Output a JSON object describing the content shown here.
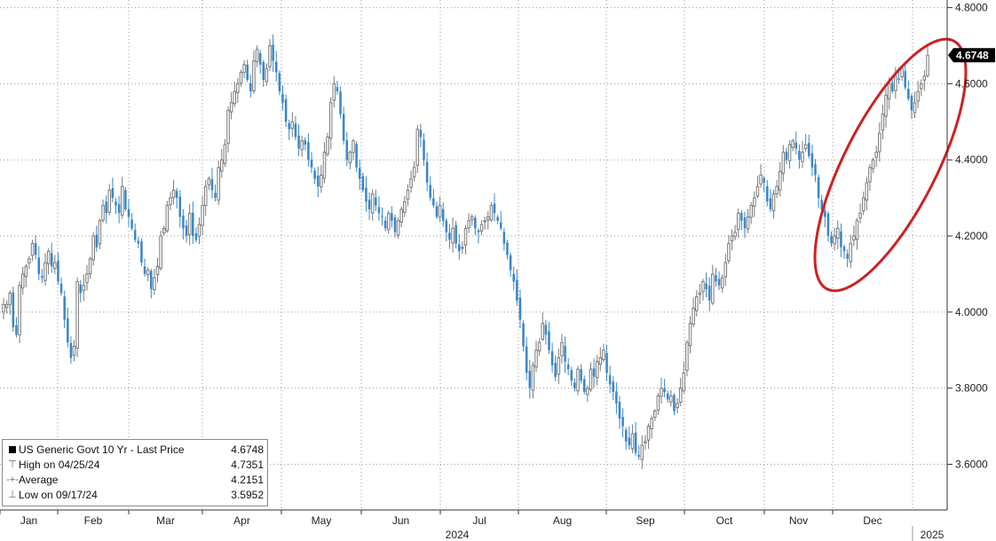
{
  "chart_data": {
    "type": "candlestick",
    "title": "",
    "series_name": "US Generic Govt 10 Yr - Last Price",
    "x_axis": {
      "months": [
        "Jan",
        "Feb",
        "Mar",
        "Apr",
        "May",
        "Jun",
        "Jul",
        "Aug",
        "Sep",
        "Oct",
        "Nov",
        "Dec"
      ],
      "year_label": "2024",
      "next_year_label": "2025"
    },
    "y_axis": {
      "position": "right",
      "range": [
        3.48,
        4.82
      ],
      "ticks": [
        "4.8000",
        "4.6000",
        "4.4000",
        "4.2000",
        "4.0000",
        "3.8000",
        "3.6000"
      ]
    },
    "grid": true,
    "up_color": "#7a7a7a",
    "down_color": "#3a86c8",
    "annotation": {
      "shape": "ellipse",
      "color": "#cc2222"
    },
    "last_value_tag": {
      "value": "4.6748",
      "color": "#000000"
    },
    "closes": [
      4.02,
      4.02,
      4.05,
      3.96,
      3.94,
      4.07,
      4.1,
      4.12,
      4.14,
      4.18,
      4.15,
      4.1,
      4.09,
      4.13,
      4.16,
      4.12,
      4.13,
      4.08,
      4.05,
      3.98,
      3.92,
      3.88,
      3.91,
      4.08,
      4.05,
      4.07,
      4.1,
      4.14,
      4.2,
      4.17,
      4.24,
      4.28,
      4.26,
      4.32,
      4.3,
      4.28,
      4.26,
      4.33,
      4.27,
      4.25,
      4.22,
      4.19,
      4.18,
      4.13,
      4.1,
      4.11,
      4.06,
      4.09,
      4.12,
      4.2,
      4.22,
      4.28,
      4.3,
      4.32,
      4.3,
      4.25,
      4.22,
      4.2,
      4.26,
      4.2,
      4.19,
      4.23,
      4.28,
      4.33,
      4.35,
      4.32,
      4.3,
      4.38,
      4.4,
      4.44,
      4.53,
      4.55,
      4.58,
      4.6,
      4.63,
      4.65,
      4.61,
      4.58,
      4.66,
      4.69,
      4.65,
      4.61,
      4.64,
      4.7,
      4.66,
      4.63,
      4.58,
      4.55,
      4.5,
      4.48,
      4.5,
      4.46,
      4.43,
      4.45,
      4.44,
      4.4,
      4.38,
      4.35,
      4.33,
      4.36,
      4.42,
      4.46,
      4.55,
      4.6,
      4.58,
      4.52,
      4.45,
      4.4,
      4.42,
      4.45,
      4.38,
      4.35,
      4.32,
      4.29,
      4.27,
      4.31,
      4.28,
      4.26,
      4.25,
      4.22,
      4.26,
      4.24,
      4.21,
      4.24,
      4.27,
      4.29,
      4.32,
      4.35,
      4.38,
      4.48,
      4.46,
      4.4,
      4.34,
      4.3,
      4.28,
      4.25,
      4.28,
      4.24,
      4.21,
      4.19,
      4.22,
      4.18,
      4.16,
      4.17,
      4.22,
      4.24,
      4.25,
      4.22,
      4.21,
      4.23,
      4.24,
      4.25,
      4.28,
      4.26,
      4.24,
      4.22,
      4.18,
      4.15,
      4.11,
      4.08,
      4.03,
      3.98,
      3.91,
      3.84,
      3.8,
      3.86,
      3.9,
      3.92,
      3.97,
      3.94,
      3.9,
      3.86,
      3.83,
      3.88,
      3.92,
      3.87,
      3.85,
      3.82,
      3.8,
      3.85,
      3.82,
      3.79,
      3.8,
      3.85,
      3.83,
      3.87,
      3.88,
      3.9,
      3.84,
      3.81,
      3.79,
      3.76,
      3.72,
      3.7,
      3.66,
      3.65,
      3.68,
      3.63,
      3.62,
      3.65,
      3.66,
      3.7,
      3.72,
      3.74,
      3.78,
      3.8,
      3.79,
      3.77,
      3.78,
      3.74,
      3.76,
      3.8,
      3.84,
      3.92,
      3.97,
      4.01,
      4.04,
      4.05,
      4.08,
      4.06,
      4.03,
      4.1,
      4.08,
      4.07,
      4.09,
      4.13,
      4.18,
      4.2,
      4.21,
      4.26,
      4.24,
      4.22,
      4.25,
      4.28,
      4.3,
      4.33,
      4.36,
      4.34,
      4.29,
      4.27,
      4.31,
      4.33,
      4.37,
      4.42,
      4.4,
      4.44,
      4.45,
      4.43,
      4.4,
      4.42,
      4.44,
      4.41,
      4.38,
      4.36,
      4.3,
      4.27,
      4.25,
      4.2,
      4.18,
      4.2,
      4.22,
      4.17,
      4.16,
      4.14,
      4.18,
      4.2,
      4.24,
      4.26,
      4.3,
      4.34,
      4.38,
      4.4,
      4.42,
      4.47,
      4.52,
      4.57,
      4.6,
      4.58,
      4.62,
      4.61,
      4.64,
      4.59,
      4.56,
      4.53,
      4.55,
      4.58,
      4.6,
      4.62,
      4.6748
    ]
  },
  "legend": {
    "row1_name": "US Generic Govt 10 Yr - Last Price",
    "row1_value": "4.6748",
    "row2_name": "High on 04/25/24",
    "row2_value": "4.7351",
    "row3_name": "Average",
    "row3_value": "4.2151",
    "row4_name": "Low on 09/17/24",
    "row4_value": "3.5952"
  }
}
